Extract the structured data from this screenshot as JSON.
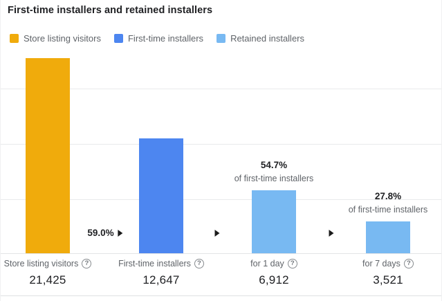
{
  "title": "First-time installers and retained installers",
  "legend": [
    {
      "label": "Store listing visitors",
      "color": "#F0AB0C"
    },
    {
      "label": "First-time installers",
      "color": "#4D86F0"
    },
    {
      "label": "Retained installers",
      "color": "#78B9F2"
    }
  ],
  "chart_data": {
    "type": "bar",
    "title": "First-time installers and retained installers",
    "categories": [
      "Store listing visitors",
      "First-time installers",
      "for 1 day",
      "for 7 days"
    ],
    "values": [
      21425,
      12647,
      6912,
      3521
    ],
    "value_labels": [
      "21,425",
      "12,647",
      "6,912",
      "3,521"
    ],
    "bar_colors": [
      "#F0AB0C",
      "#4D86F0",
      "#78B9F2",
      "#78B9F2"
    ],
    "ylim": [
      0,
      22600
    ],
    "grid": true,
    "legend_position": "top",
    "annotations": [
      {
        "percent": "59.0%",
        "note": "",
        "position": "between Store listing visitors and First-time installers"
      },
      {
        "percent": "54.7%",
        "note": "of first-time installers",
        "position": "above for 1 day"
      },
      {
        "percent": "27.8%",
        "note": "of first-time installers",
        "position": "above for 7 days"
      }
    ]
  },
  "columns": [
    {
      "label": "Store listing visitors",
      "value": "21,425"
    },
    {
      "label": "First-time installers",
      "value": "12,647"
    },
    {
      "label": "for 1 day",
      "value": "6,912"
    },
    {
      "label": "for 7 days",
      "value": "3,521"
    }
  ],
  "icons": {
    "help": "?"
  }
}
